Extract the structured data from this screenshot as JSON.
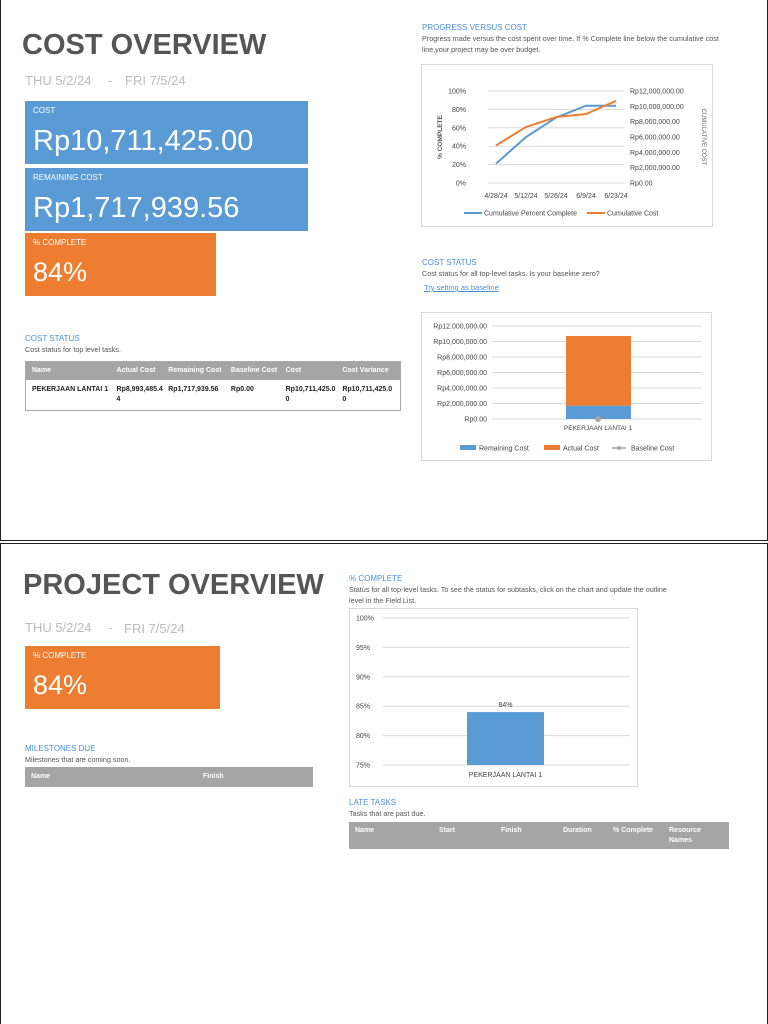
{
  "cost_overview": {
    "title": "COST OVERVIEW",
    "start_date": "THU 5/2/24",
    "separator": "-",
    "end_date": "FRI 7/5/24",
    "cost_label": "COST",
    "cost_value": "Rp10,711,425.00",
    "remaining_label": "REMAINING COST",
    "remaining_value": "Rp1,717,939.56",
    "complete_label": "% COMPLETE",
    "complete_value": "84%",
    "colors": {
      "blue": "#5b9bd5",
      "orange": "#ed7d31"
    },
    "cost_status": {
      "title": "COST STATUS",
      "desc": "Cost status for top level tasks.",
      "headers": [
        "Name",
        "Actual Cost",
        "Remaining Cost",
        "Baseline Cost",
        "Cost",
        "Cost Variance"
      ],
      "rows": [
        [
          "PEKERJAAN LANTAI 1",
          "Rp8,993,485.44",
          "Rp1,717,939.56",
          "Rp0.00",
          "Rp10,711,425.00",
          "Rp10,711,425.00"
        ]
      ]
    },
    "progress": {
      "title": "PROGRESS VERSUS COST",
      "desc": "Progress made versus the cost spent over time. If % Complete line below the cumulative cost line,your project may be over budget."
    },
    "cost_status_chart": {
      "title": "COST STATUS",
      "desc": "Cost status for all top-level tasks. Is your baseline zero?",
      "link": "Try setting as baseline"
    }
  },
  "project_overview": {
    "title": "PROJECT OVERVIEW",
    "start_date": "THU 5/2/24",
    "separator": "-",
    "end_date": "FRI 7/5/24",
    "complete_label": "% COMPLETE",
    "complete_value": "84%",
    "milestones": {
      "title": "MILESTONES DUE",
      "desc": "Milestones that are coming soon.",
      "headers": [
        "Name",
        "Finish"
      ]
    },
    "percent_chart": {
      "title": "% COMPLETE",
      "desc": "Status for all top-level tasks. To see the status for subtasks, click on the chart and update the outline level in the Field List."
    },
    "late_tasks": {
      "title": "LATE TASKS",
      "desc": "Tasks that are past due.",
      "headers": [
        "Name",
        "Start",
        "Finish",
        "Duration",
        "% Complete",
        "Resource Names"
      ]
    }
  },
  "chart_data": [
    {
      "type": "line",
      "categories": [
        "4/28/24",
        "5/12/24",
        "5/26/24",
        "6/9/24",
        "6/23/24"
      ],
      "ylabel": "% COMPLETE",
      "y2label": "CUMULATIVE COST",
      "yticks": [
        "0%",
        "20%",
        "40%",
        "60%",
        "80%",
        "100%"
      ],
      "ylim": [
        0,
        100
      ],
      "y2ticks": [
        "Rp0.00",
        "Rp2,000,000.00",
        "Rp4,000,000.00",
        "Rp6,000,000.00",
        "Rp8,000,000.00",
        "Rp10,000,000.00",
        "Rp12,000,000.00"
      ],
      "y2lim": [
        0,
        12000000
      ],
      "series": [
        {
          "name": "Cumulative Percent Complete",
          "axis": "left",
          "color": "#5b9bd5",
          "values": [
            21,
            50,
            71,
            84,
            84
          ]
        },
        {
          "name": "Cumulative Cost",
          "axis": "right",
          "color": "#ed7d31",
          "values": [
            4900000,
            7300000,
            8600000,
            9000000,
            10711425
          ]
        }
      ],
      "legend": "bottom",
      "grid": true
    },
    {
      "type": "bar",
      "stacked": true,
      "categories": [
        "PEKERJAAN LANTAI 1"
      ],
      "yticks": [
        "Rp0.00",
        "Rp2,000,000.00",
        "Rp4,000,000.00",
        "Rp6,000,000.00",
        "Rp8,000,000.00",
        "Rp10,000,000.00",
        "Rp12,000,000.00"
      ],
      "ylim": [
        0,
        12000000
      ],
      "series": [
        {
          "name": "Remaining Cost",
          "color": "#5b9bd5",
          "values": [
            1717939.56
          ]
        },
        {
          "name": "Actual Cost",
          "color": "#ed7d31",
          "values": [
            8993485.44
          ]
        },
        {
          "name": "Baseline Cost",
          "color": "#a5a5a5",
          "kind": "line",
          "values": [
            0
          ]
        }
      ],
      "legend": "bottom",
      "grid": true
    },
    {
      "type": "bar",
      "categories": [
        "PEKERJAAN LANTAI 1"
      ],
      "values": [
        84
      ],
      "data_labels": [
        "84%"
      ],
      "yticks": [
        "75%",
        "80%",
        "85%",
        "90%",
        "95%",
        "100%"
      ],
      "ylim": [
        75,
        100
      ],
      "color": "#5b9bd5",
      "grid": true
    }
  ]
}
